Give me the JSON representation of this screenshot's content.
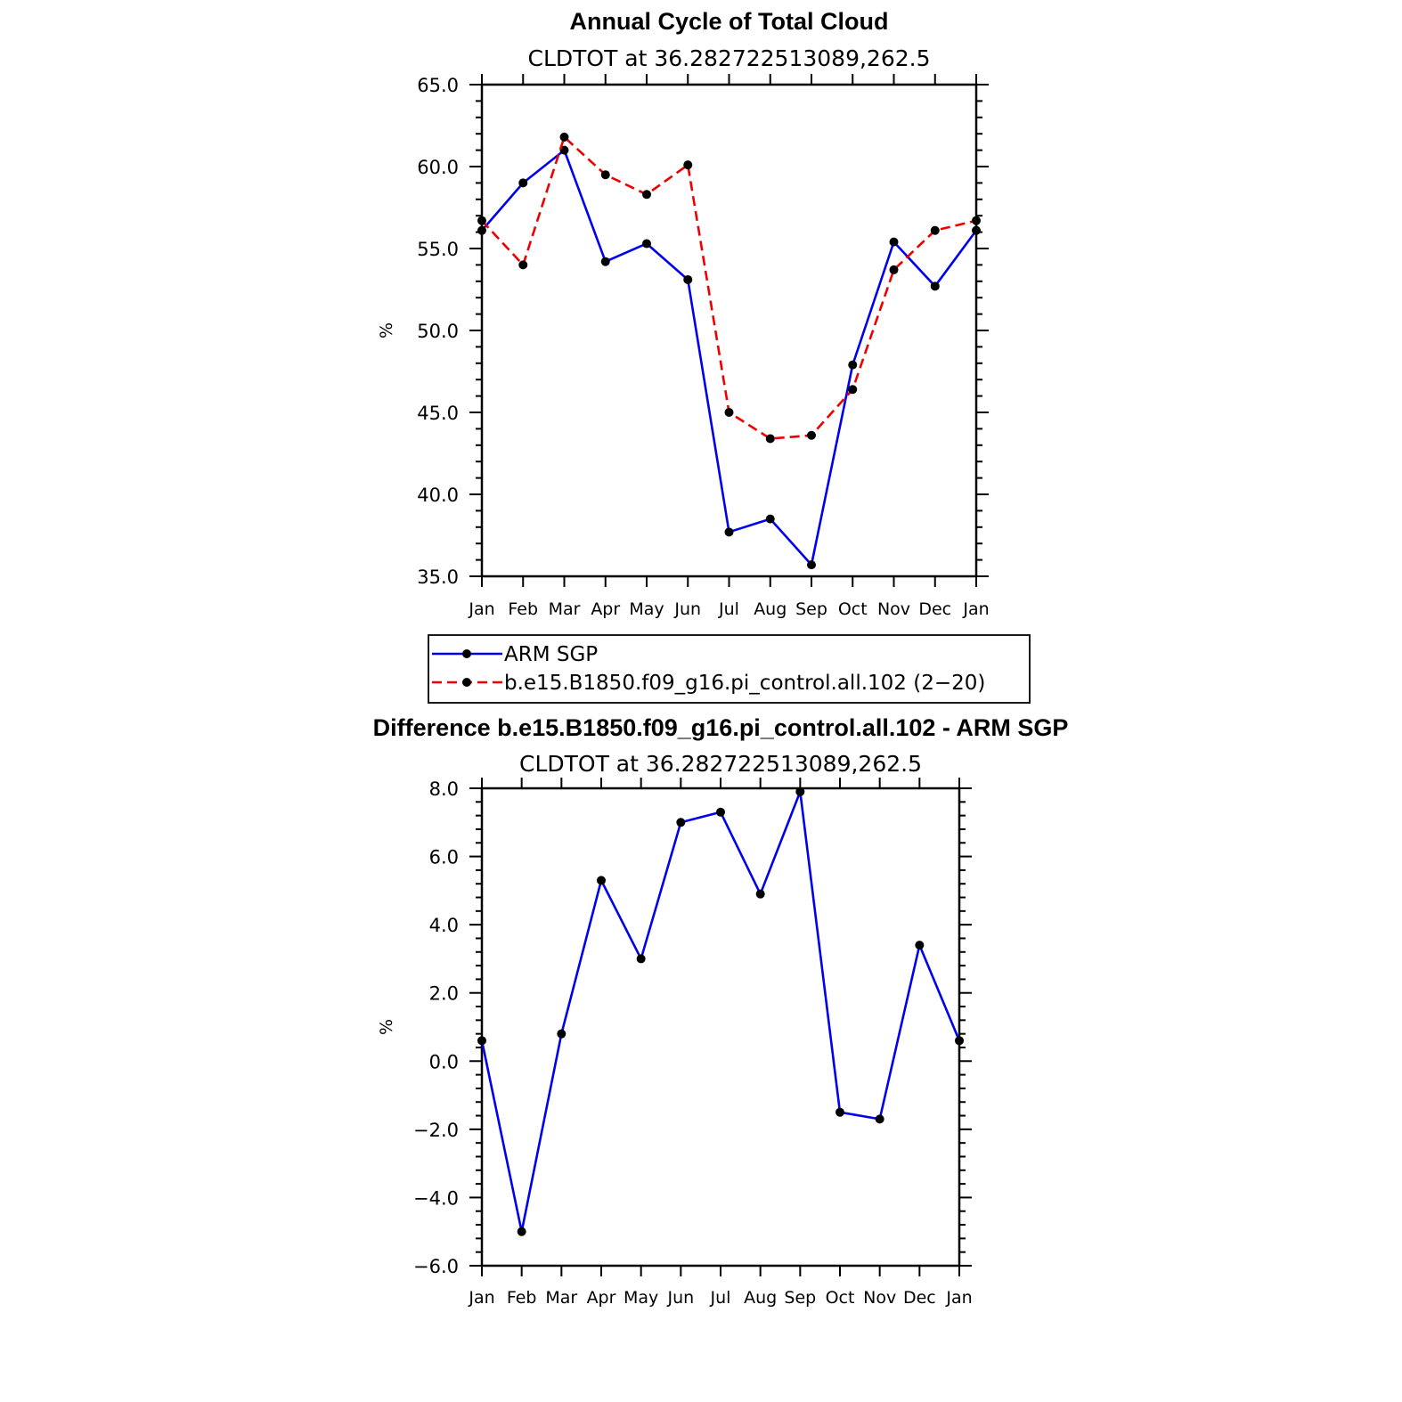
{
  "colors": {
    "obs": "#0000ee",
    "model": "#ee0000",
    "marker": "#000000",
    "axis": "#000000"
  },
  "chart_data": [
    {
      "type": "line",
      "title": "Annual Cycle of Total Cloud",
      "subtitle": "CLDTOT at 36.282722513089,262.5",
      "ylabel": "%",
      "ylim": [
        35.0,
        65.0
      ],
      "yticks": [
        "65.0",
        "60.0",
        "55.0",
        "50.0",
        "45.0",
        "40.0",
        "35.0"
      ],
      "ytick_values": [
        65,
        60,
        55,
        50,
        45,
        40,
        35
      ],
      "categories": [
        "Jan",
        "Feb",
        "Mar",
        "Apr",
        "May",
        "Jun",
        "Jul",
        "Aug",
        "Sep",
        "Oct",
        "Nov",
        "Dec",
        "Jan"
      ],
      "series": [
        {
          "name": "ARM SGP",
          "style": "solid",
          "color_key": "obs",
          "values": [
            56.1,
            59.0,
            61.0,
            54.2,
            55.3,
            53.1,
            37.7,
            38.5,
            35.7,
            47.9,
            55.4,
            52.7,
            56.1
          ]
        },
        {
          "name": "b.e15.B1850.f09_g16.pi_control.all.102 (2−20)",
          "style": "dashed",
          "color_key": "model",
          "values": [
            56.7,
            54.0,
            61.8,
            59.5,
            58.3,
            60.1,
            45.0,
            43.4,
            43.6,
            46.4,
            53.7,
            56.1,
            56.7
          ]
        }
      ],
      "legend": [
        "ARM SGP",
        "b.e15.B1850.f09_g16.pi_control.all.102 (2−20)"
      ]
    },
    {
      "type": "line",
      "title": "Difference b.e15.B1850.f09_g16.pi_control.all.102 - ARM SGP",
      "subtitle": "CLDTOT at 36.282722513089,262.5",
      "ylabel": "%",
      "ylim": [
        -6.0,
        8.0
      ],
      "yticks": [
        "8.0",
        "6.0",
        "4.0",
        "2.0",
        "0.0",
        "−2.0",
        "−4.0",
        "−6.0"
      ],
      "ytick_values": [
        8,
        6,
        4,
        2,
        0,
        -2,
        -4,
        -6
      ],
      "categories": [
        "Jan",
        "Feb",
        "Mar",
        "Apr",
        "May",
        "Jun",
        "Jul",
        "Aug",
        "Sep",
        "Oct",
        "Nov",
        "Dec",
        "Jan"
      ],
      "series": [
        {
          "name": "difference",
          "style": "solid",
          "color_key": "obs",
          "values": [
            0.6,
            -5.0,
            0.8,
            5.3,
            3.0,
            7.0,
            7.3,
            4.9,
            7.9,
            -1.5,
            -1.7,
            3.4,
            0.6
          ]
        }
      ]
    }
  ]
}
